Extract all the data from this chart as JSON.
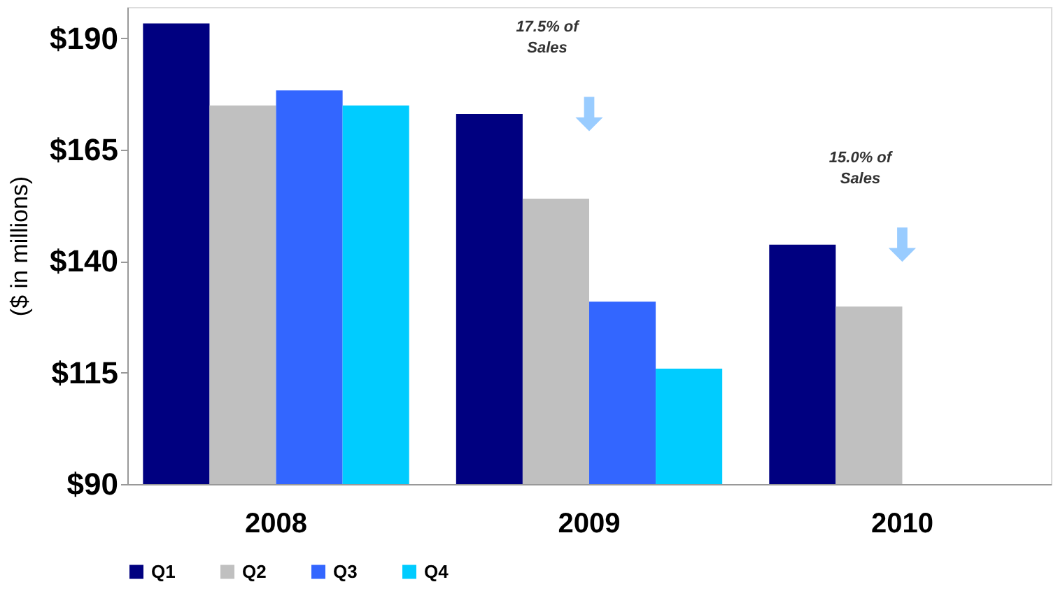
{
  "chart_data": {
    "type": "bar",
    "ylabel": "($ in millions)",
    "categories": [
      "2008",
      "2009",
      "2010"
    ],
    "series": [
      {
        "name": "Q1",
        "color": "#000080",
        "values": [
          193.3,
          173.0,
          143.7
        ]
      },
      {
        "name": "Q2",
        "color": "#c0c0c0",
        "values": [
          174.9,
          154.0,
          129.8
        ]
      },
      {
        "name": "Q3",
        "color": "#3366ff",
        "values": [
          178.3,
          130.9,
          null
        ]
      },
      {
        "name": "Q4",
        "color": "#00ccff",
        "values": [
          174.9,
          115.9,
          null
        ]
      }
    ],
    "ylim": [
      90,
      197
    ],
    "yticks": [
      {
        "value": 90,
        "label": "$90"
      },
      {
        "value": 115,
        "label": "$115"
      },
      {
        "value": 140,
        "label": "$140"
      },
      {
        "value": 165,
        "label": "$165"
      },
      {
        "value": 190,
        "label": "$190"
      }
    ],
    "annotations": [
      "17.5% of Sales",
      "15.0% of Sales"
    ],
    "grid": false,
    "legend": "bottom"
  }
}
